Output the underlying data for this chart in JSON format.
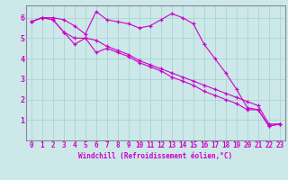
{
  "xlabel": "Windchill (Refroidissement éolien,°C)",
  "bg_color": "#cce8e8",
  "line_color": "#cc00cc",
  "grid_color": "#aad4d4",
  "border_color": "#888899",
  "xlim": [
    -0.5,
    23.5
  ],
  "ylim": [
    0,
    6.6
  ],
  "yticks": [
    1,
    2,
    3,
    4,
    5,
    6
  ],
  "xticks": [
    0,
    1,
    2,
    3,
    4,
    5,
    6,
    7,
    8,
    9,
    10,
    11,
    12,
    13,
    14,
    15,
    16,
    17,
    18,
    19,
    20,
    21,
    22,
    23
  ],
  "series": [
    [
      5.8,
      6.0,
      6.0,
      5.9,
      5.6,
      5.2,
      6.3,
      5.9,
      5.8,
      5.7,
      5.5,
      5.6,
      5.9,
      6.2,
      6.0,
      5.7,
      4.7,
      4.0,
      3.3,
      2.5,
      1.6,
      1.5,
      0.7,
      0.8
    ],
    [
      5.8,
      6.0,
      5.9,
      5.3,
      4.7,
      5.0,
      4.9,
      4.6,
      4.4,
      4.2,
      3.9,
      3.7,
      3.5,
      3.3,
      3.1,
      2.9,
      2.7,
      2.5,
      2.3,
      2.1,
      1.9,
      1.7,
      0.8,
      0.8
    ],
    [
      5.8,
      6.0,
      5.9,
      5.3,
      5.0,
      5.0,
      4.3,
      4.5,
      4.3,
      4.1,
      3.8,
      3.6,
      3.4,
      3.1,
      2.9,
      2.7,
      2.4,
      2.2,
      2.0,
      1.8,
      1.5,
      1.5,
      0.7,
      0.8
    ]
  ],
  "tick_fontsize": 5.5,
  "xlabel_fontsize": 5.5
}
